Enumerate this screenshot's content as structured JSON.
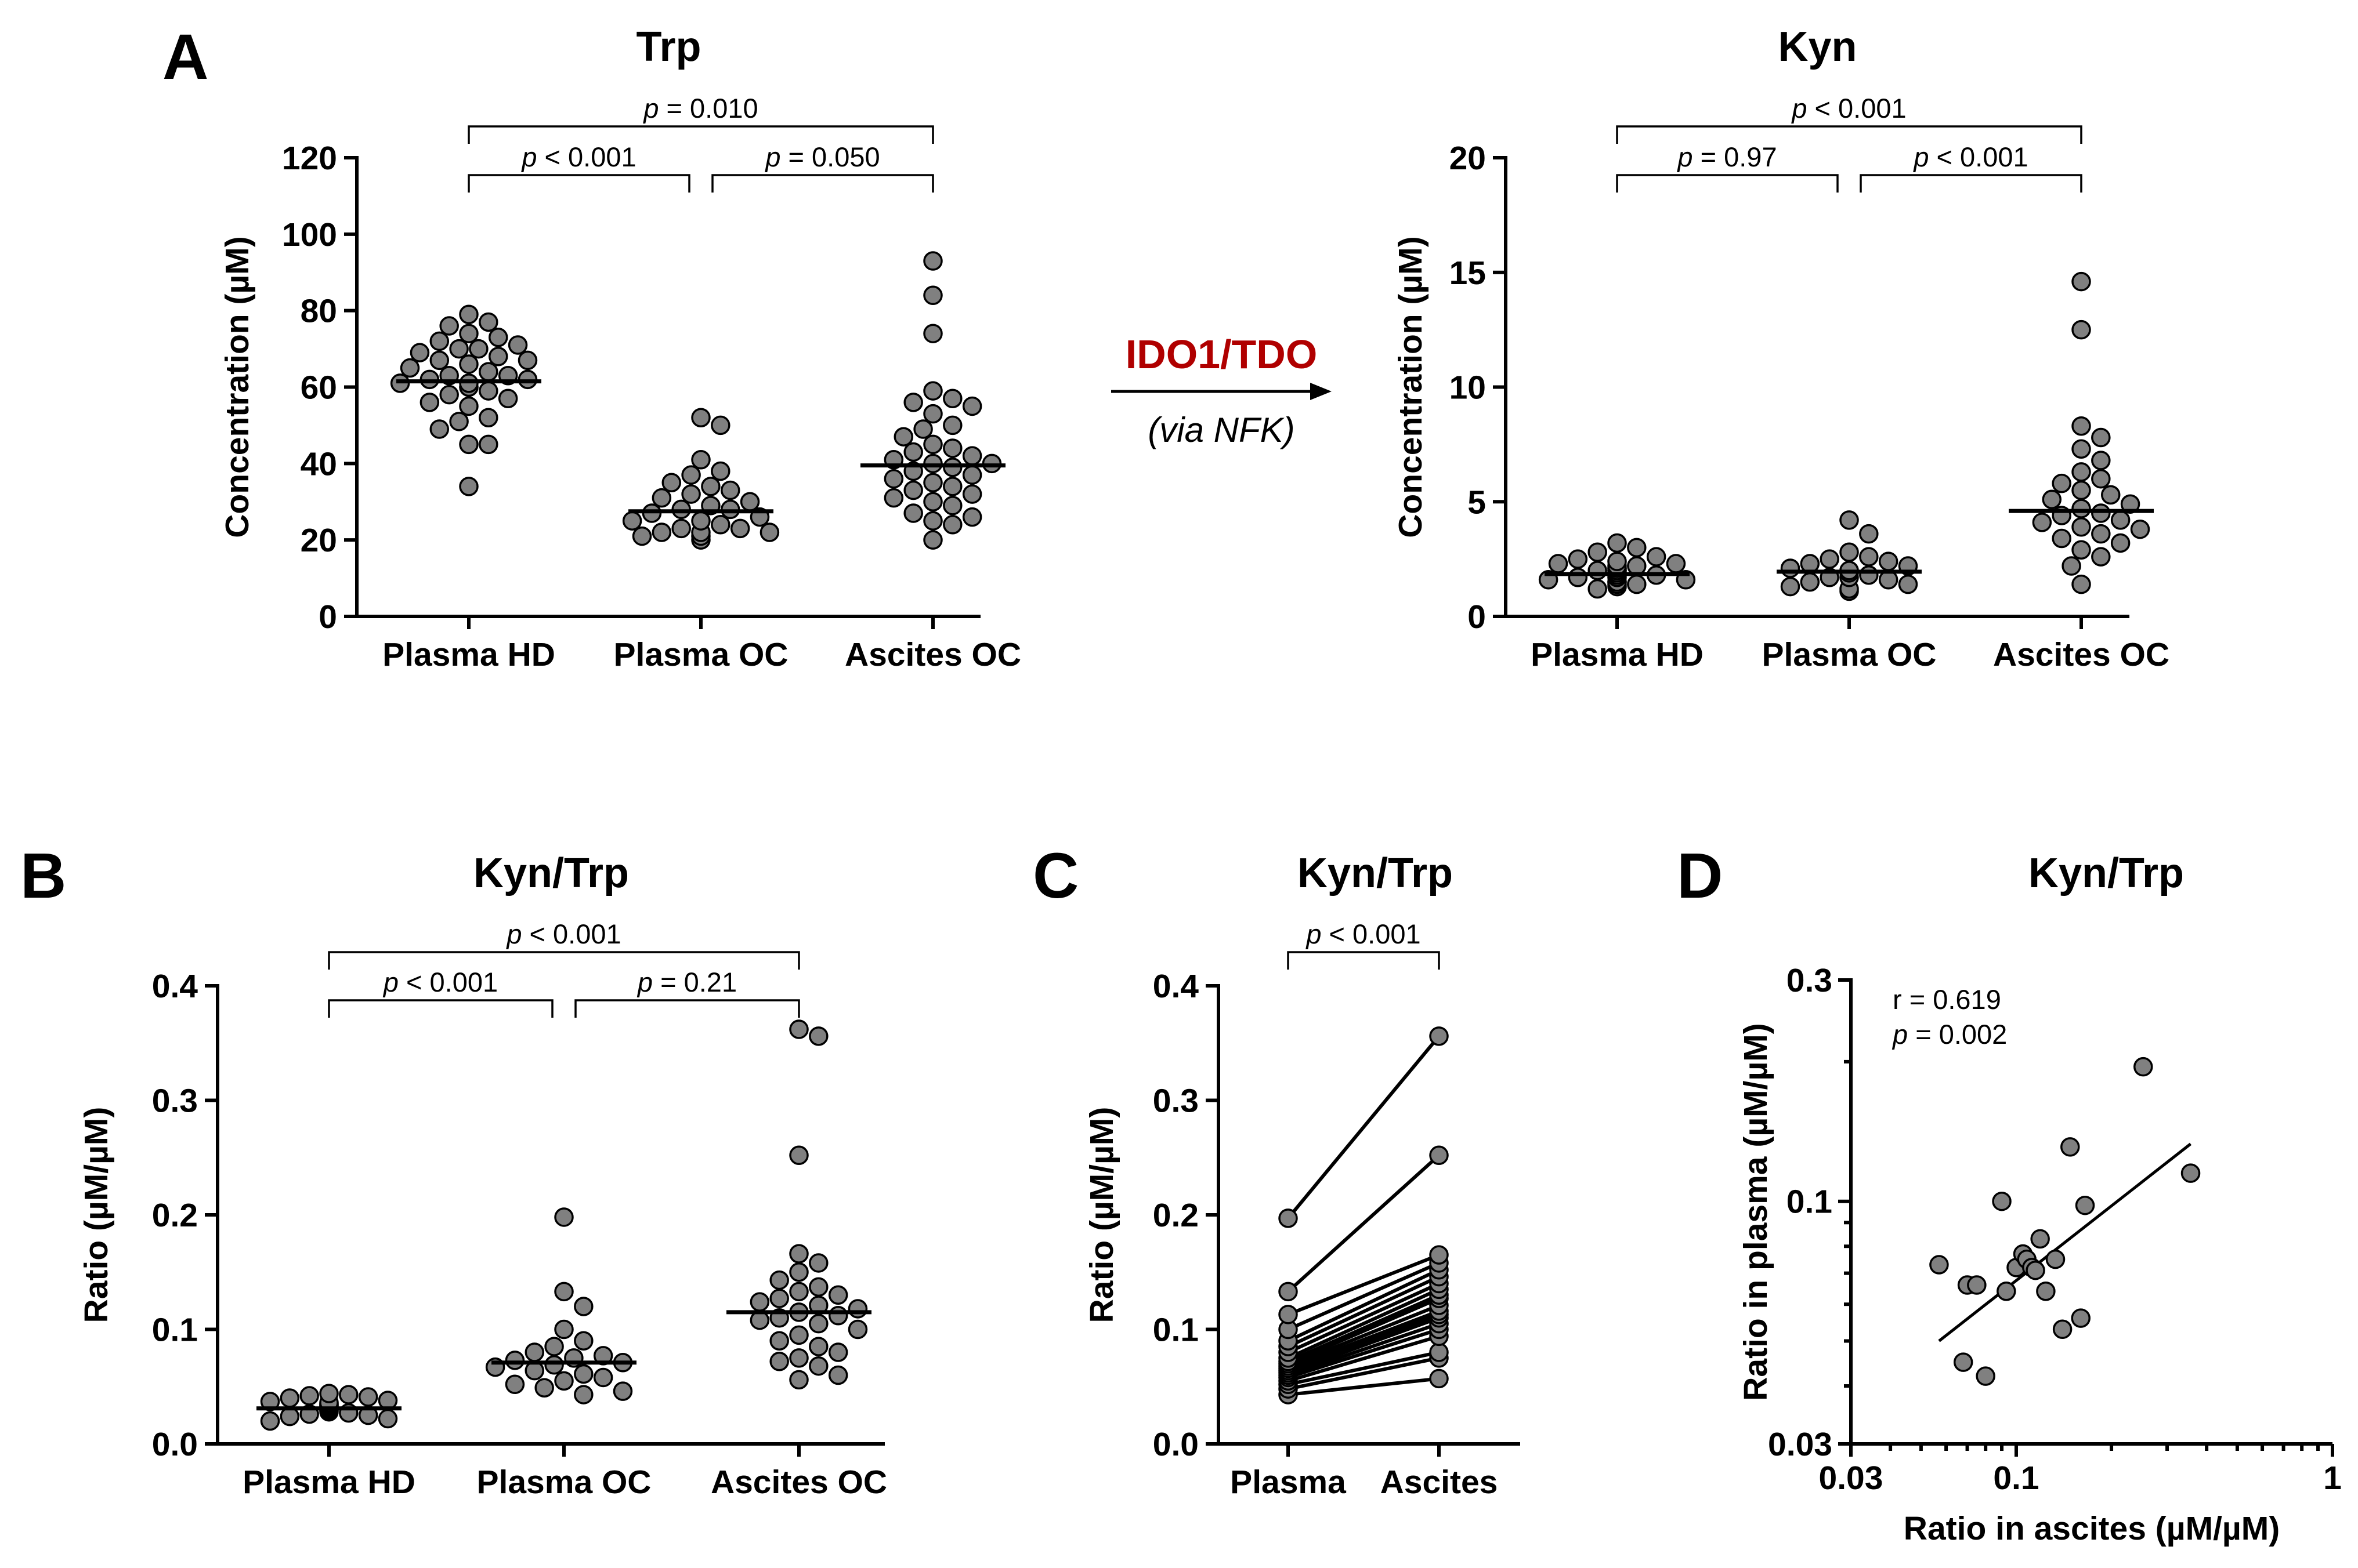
{
  "panels": {
    "A": "A",
    "B": "B",
    "C": "C",
    "D": "D"
  },
  "pathway": {
    "enzyme": "IDO1/TDO",
    "intermediate": "(via NFK)",
    "enzyme_color": "#b00000"
  },
  "chart_data": [
    {
      "id": "trp",
      "type": "scatter",
      "panel": "A",
      "title": "Trp",
      "ylabel": "Concentration (µM)",
      "xlabel": "",
      "ylim": [
        0,
        120
      ],
      "yticks": [
        "0",
        "20",
        "40",
        "60",
        "80",
        "100",
        "120"
      ],
      "categories": [
        "Plasma HD",
        "Plasma OC",
        "Ascites OC"
      ],
      "medians": [
        61.5,
        27.5,
        39.5
      ],
      "groups": [
        [
          34,
          45,
          45,
          49,
          51,
          52,
          55,
          56,
          57,
          58,
          59,
          60,
          60,
          61,
          61,
          62,
          62,
          63,
          63,
          64,
          65,
          66,
          67,
          67,
          68,
          69,
          70,
          70,
          71,
          72,
          73,
          74,
          76,
          77,
          79
        ],
        [
          20,
          21,
          21,
          22,
          22,
          22,
          23,
          23,
          24,
          25,
          25,
          26,
          27,
          28,
          28,
          29,
          30,
          31,
          32,
          33,
          34,
          35,
          37,
          38,
          41,
          50,
          52
        ],
        [
          20,
          24,
          25,
          26,
          27,
          29,
          30,
          31,
          32,
          33,
          34,
          35,
          36,
          37,
          38,
          39,
          40,
          40,
          41,
          42,
          43,
          44,
          45,
          47,
          49,
          50,
          53,
          55,
          56,
          57,
          59,
          74,
          84,
          93
        ]
      ],
      "comparisons": [
        {
          "from": 0,
          "to": 2,
          "label": "p = 0.010"
        },
        {
          "from": 0,
          "to": 1,
          "label": "p < 0.001"
        },
        {
          "from": 1,
          "to": 2,
          "label": "p = 0.050"
        }
      ]
    },
    {
      "id": "kyn",
      "type": "scatter",
      "panel": "A",
      "title": "Kyn",
      "ylabel": "Concentration (µM)",
      "xlabel": "",
      "ylim": [
        0,
        20
      ],
      "yticks": [
        "0",
        "5",
        "10",
        "15",
        "20"
      ],
      "categories": [
        "Plasma HD",
        "Plasma OC",
        "Ascites OC"
      ],
      "medians": [
        1.85,
        1.95,
        4.6
      ],
      "groups": [
        [
          1.2,
          1.3,
          1.4,
          1.4,
          1.5,
          1.5,
          1.6,
          1.6,
          1.7,
          1.7,
          1.8,
          1.8,
          1.8,
          1.9,
          1.9,
          2.0,
          2.0,
          2.0,
          2.1,
          2.1,
          2.2,
          2.2,
          2.3,
          2.3,
          2.4,
          2.5,
          2.6,
          2.8,
          3.0,
          3.2
        ],
        [
          1.1,
          1.2,
          1.3,
          1.4,
          1.5,
          1.6,
          1.7,
          1.7,
          1.8,
          1.9,
          2.0,
          2.0,
          2.1,
          2.2,
          2.3,
          2.4,
          2.5,
          2.6,
          2.8,
          3.6,
          4.2
        ],
        [
          1.4,
          2.2,
          2.6,
          2.9,
          3.2,
          3.4,
          3.6,
          3.8,
          3.9,
          4.1,
          4.2,
          4.4,
          4.5,
          4.7,
          4.9,
          5.1,
          5.3,
          5.5,
          5.8,
          6.0,
          6.3,
          6.8,
          7.3,
          7.8,
          8.3,
          12.5,
          14.6
        ]
      ],
      "comparisons": [
        {
          "from": 0,
          "to": 2,
          "label": "p < 0.001"
        },
        {
          "from": 0,
          "to": 1,
          "label": "p = 0.97"
        },
        {
          "from": 1,
          "to": 2,
          "label": "p < 0.001"
        }
      ]
    },
    {
      "id": "ratio",
      "type": "scatter",
      "panel": "B",
      "title": "Kyn/Trp",
      "ylabel": "Ratio (µM/µM)",
      "xlabel": "",
      "ylim": [
        0,
        0.4
      ],
      "yticks": [
        "0.0",
        "0.1",
        "0.2",
        "0.3",
        "0.4"
      ],
      "categories": [
        "Plasma HD",
        "Plasma OC",
        "Ascites OC"
      ],
      "medians": [
        0.031,
        0.071,
        0.115
      ],
      "groups": [
        [
          0.02,
          0.022,
          0.024,
          0.025,
          0.026,
          0.027,
          0.028,
          0.029,
          0.03,
          0.031,
          0.032,
          0.033,
          0.034,
          0.034,
          0.035,
          0.036,
          0.037,
          0.038,
          0.04,
          0.041,
          0.042,
          0.043,
          0.044
        ],
        [
          0.043,
          0.046,
          0.049,
          0.052,
          0.055,
          0.058,
          0.061,
          0.064,
          0.067,
          0.069,
          0.071,
          0.073,
          0.075,
          0.077,
          0.08,
          0.085,
          0.09,
          0.1,
          0.12,
          0.133,
          0.198
        ],
        [
          0.056,
          0.06,
          0.068,
          0.072,
          0.075,
          0.08,
          0.085,
          0.09,
          0.095,
          0.1,
          0.105,
          0.108,
          0.11,
          0.112,
          0.115,
          0.118,
          0.121,
          0.124,
          0.127,
          0.13,
          0.133,
          0.137,
          0.143,
          0.15,
          0.158,
          0.166,
          0.252,
          0.356,
          0.362
        ]
      ],
      "comparisons": [
        {
          "from": 0,
          "to": 2,
          "label": "p < 0.001"
        },
        {
          "from": 0,
          "to": 1,
          "label": "p < 0.001"
        },
        {
          "from": 1,
          "to": 2,
          "label": "p = 0.21"
        }
      ]
    },
    {
      "id": "paired",
      "type": "line",
      "panel": "C",
      "title": "Kyn/Trp",
      "ylabel": "Ratio (µM/µM)",
      "xlabel": "",
      "ylim": [
        0,
        0.4
      ],
      "yticks": [
        "0.0",
        "0.1",
        "0.2",
        "0.3",
        "0.4"
      ],
      "categories": [
        "Plasma",
        "Ascites"
      ],
      "pairs": [
        [
          0.043,
          0.057
        ],
        [
          0.048,
          0.075
        ],
        [
          0.052,
          0.08
        ],
        [
          0.055,
          0.094
        ],
        [
          0.058,
          0.1
        ],
        [
          0.06,
          0.105
        ],
        [
          0.062,
          0.11
        ],
        [
          0.064,
          0.113
        ],
        [
          0.066,
          0.116
        ],
        [
          0.068,
          0.121
        ],
        [
          0.07,
          0.127
        ],
        [
          0.072,
          0.13
        ],
        [
          0.075,
          0.135
        ],
        [
          0.08,
          0.14
        ],
        [
          0.085,
          0.146
        ],
        [
          0.09,
          0.152
        ],
        [
          0.1,
          0.158
        ],
        [
          0.113,
          0.165
        ],
        [
          0.133,
          0.252
        ],
        [
          0.197,
          0.356
        ]
      ],
      "comparisons": [
        {
          "from": 0,
          "to": 1,
          "label": "p < 0.001"
        }
      ]
    },
    {
      "id": "correlation",
      "type": "scatter",
      "panel": "D",
      "title": "Kyn/Trp",
      "xlabel": "Ratio in ascites (µM/µM)",
      "ylabel": "Ratio in plasma (µM/µM)",
      "xscale": "log",
      "yscale": "log",
      "xlim": [
        0.03,
        1
      ],
      "ylim": [
        0.03,
        0.3
      ],
      "xticks": [
        0.03,
        0.1,
        1
      ],
      "xtick_labels": [
        "0.03",
        "0.1",
        "1"
      ],
      "yticks": [
        0.03,
        0.1,
        0.3
      ],
      "ytick_labels": [
        "0.03",
        "0.1",
        "0.3"
      ],
      "x": [
        0.057,
        0.07,
        0.075,
        0.068,
        0.08,
        0.09,
        0.093,
        0.1,
        0.105,
        0.108,
        0.112,
        0.115,
        0.119,
        0.124,
        0.133,
        0.14,
        0.148,
        0.16,
        0.165,
        0.252,
        0.356
      ],
      "y": [
        0.073,
        0.066,
        0.066,
        0.045,
        0.042,
        0.1,
        0.064,
        0.072,
        0.077,
        0.075,
        0.072,
        0.071,
        0.083,
        0.064,
        0.075,
        0.053,
        0.131,
        0.056,
        0.098,
        0.195,
        0.115
      ],
      "fit": {
        "x": [
          0.057,
          0.356
        ],
        "y": [
          0.05,
          0.133
        ]
      },
      "stats": {
        "r_label": "r = 0.619",
        "p_label": "p = 0.002"
      }
    }
  ]
}
